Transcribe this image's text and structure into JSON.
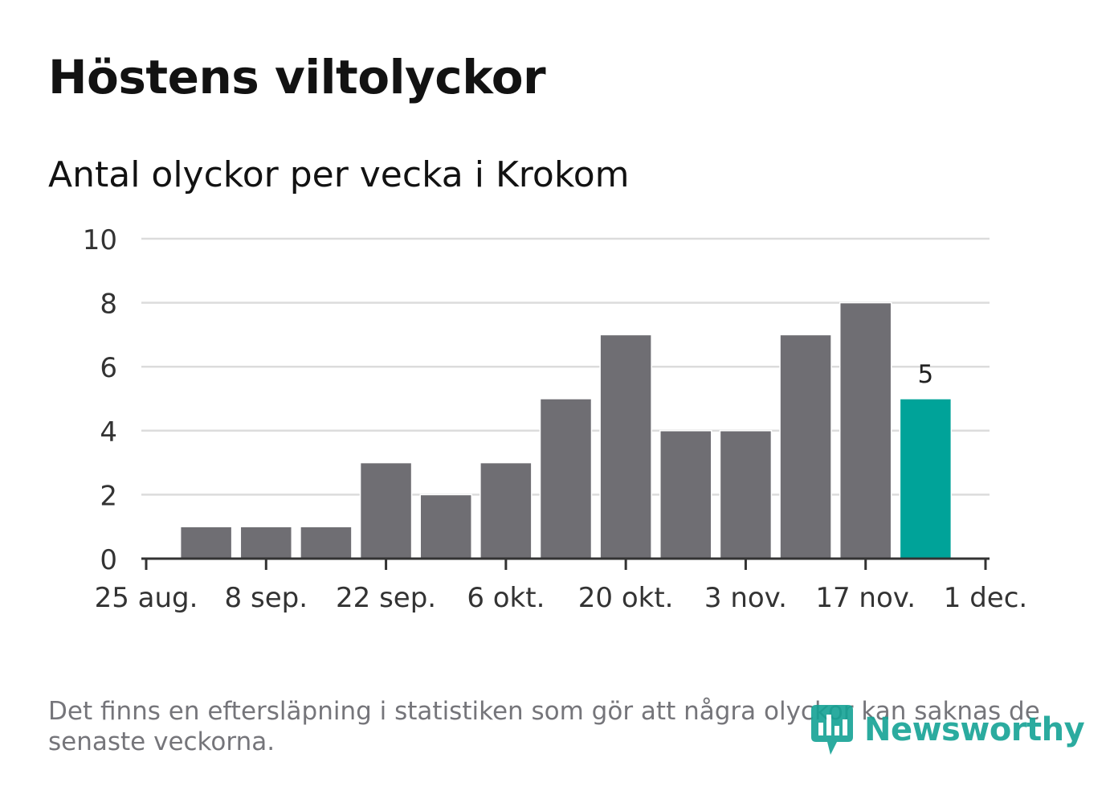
{
  "header": {
    "title": "Höstens viltolyckor",
    "subtitle": "Antal olyckor per vecka i Krokom"
  },
  "footer": {
    "note": "Det finns en eftersläpning i statistiken som gör att några olyckor kan saknas de senaste veckorna.",
    "brand": "Newsworthy"
  },
  "colors": {
    "bar": "#6f6e73",
    "highlight": "#00a399",
    "grid": "#dcdcdc",
    "axis": "#333333",
    "text": "#333333",
    "brand": "#15a395"
  },
  "chart_data": {
    "type": "bar",
    "title": "Höstens viltolyckor",
    "subtitle": "Antal olyckor per vecka i Krokom",
    "x_unit": "days since 25 aug.",
    "x_domain": [
      0,
      98
    ],
    "bar_width_days": 6,
    "x_ticks": [
      {
        "x": 0,
        "label": "25 aug."
      },
      {
        "x": 14,
        "label": "8 sep."
      },
      {
        "x": 28,
        "label": "22 sep."
      },
      {
        "x": 42,
        "label": "6 okt."
      },
      {
        "x": 56,
        "label": "20 okt."
      },
      {
        "x": 70,
        "label": "3 nov."
      },
      {
        "x": 84,
        "label": "17 nov."
      },
      {
        "x": 98,
        "label": "1 dec."
      }
    ],
    "ylim": [
      0,
      10
    ],
    "y_ticks": [
      0,
      2,
      4,
      6,
      8,
      10
    ],
    "grid": true,
    "bars": [
      {
        "x": 7,
        "value": 1,
        "highlight": false
      },
      {
        "x": 14,
        "value": 1,
        "highlight": false
      },
      {
        "x": 21,
        "value": 1,
        "highlight": false
      },
      {
        "x": 28,
        "value": 3,
        "highlight": false
      },
      {
        "x": 35,
        "value": 2,
        "highlight": false
      },
      {
        "x": 42,
        "value": 3,
        "highlight": false
      },
      {
        "x": 49,
        "value": 5,
        "highlight": false
      },
      {
        "x": 56,
        "value": 7,
        "highlight": false
      },
      {
        "x": 63,
        "value": 4,
        "highlight": false
      },
      {
        "x": 70,
        "value": 4,
        "highlight": false
      },
      {
        "x": 77,
        "value": 7,
        "highlight": false
      },
      {
        "x": 84,
        "value": 8,
        "highlight": false
      },
      {
        "x": 91,
        "value": 5,
        "highlight": true,
        "label": "5"
      }
    ]
  }
}
